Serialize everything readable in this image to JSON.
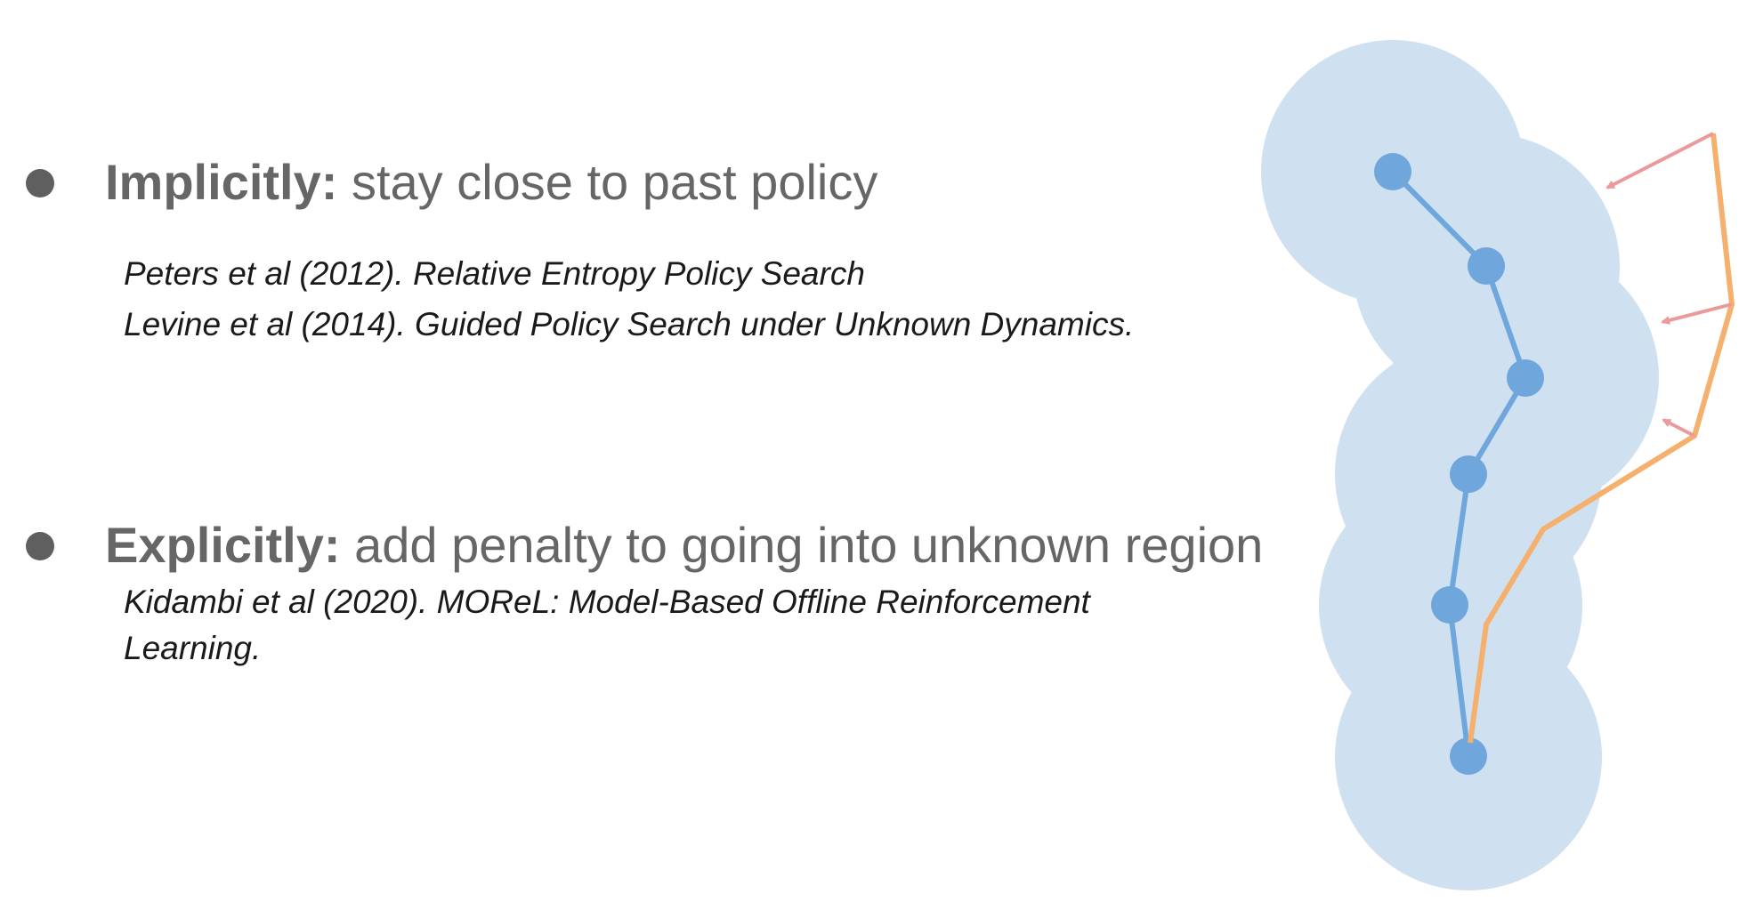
{
  "bullets": [
    {
      "lead": "Implicitly:",
      "text": " stay close to past policy",
      "refs": [
        "Peters et al (2012). Relative Entropy Policy Search",
        "Levine et al (2014). Guided Policy Search under Unknown Dynamics."
      ]
    },
    {
      "lead": "Explicitly:",
      "text": " add penalty to going into unknown region",
      "refs": [
        "Kidambi et al (2020). MOReL: Model-Based Offline Reinforcement",
        "Learning."
      ]
    }
  ],
  "colors": {
    "text": "#666666",
    "bullet": "#5f5f5f",
    "reference": "#1a1a1a",
    "region": "#cfe0f1",
    "data_path": "#6fa6dc",
    "policy_path": "#f4b06c",
    "penalty_arrow": "#ea9a9a"
  }
}
